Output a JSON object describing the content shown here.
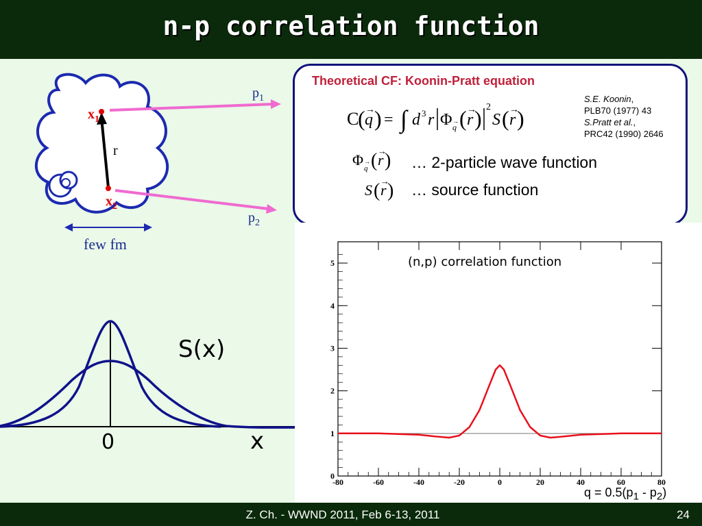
{
  "slide": {
    "title": "n-p correlation function",
    "footer": "Z. Ch. - WWND 2011, Feb 6-13, 2011",
    "page_number": "24"
  },
  "source_diagram": {
    "x1": "x",
    "x1_sub": "1",
    "x2": "x",
    "x2_sub": "2",
    "r": "r",
    "p1": "p",
    "p1_sub": "1",
    "p2": "p",
    "p2_sub": "2",
    "scale": "few fm"
  },
  "formula_box": {
    "title": "Theoretical CF: Koonin-Pratt equation",
    "ref1_author": "S.E. Koonin",
    "ref1_cite": "PLB70 (1977) 43",
    "ref2_author": "S.Pratt et al.",
    "ref2_cite": "PRC42 (1990) 2646",
    "wave_desc": "… 2-particle wave function",
    "source_desc": "… source function"
  },
  "gaussians": {
    "label": "S(x)",
    "zero": "0",
    "axis": "x"
  },
  "chart_data": {
    "type": "line",
    "title": "(n,p) correlation function",
    "xlim": [
      -80,
      80
    ],
    "ylim": [
      0,
      5.5
    ],
    "x_ticks": [
      "-80",
      "-60",
      "-40",
      "-20",
      "0",
      "20",
      "40",
      "60",
      "80"
    ],
    "y_ticks": [
      "0",
      "1",
      "2",
      "3",
      "4",
      "5"
    ],
    "series": [
      {
        "color": "#e8101c",
        "x": [
          -80,
          -60,
          -40,
          -30,
          -25,
          -20,
          -15,
          -10,
          -5,
          -2,
          0,
          2,
          5,
          10,
          15,
          20,
          25,
          30,
          40,
          60,
          80
        ],
        "y": [
          1.0,
          1.0,
          0.97,
          0.92,
          0.9,
          0.95,
          1.15,
          1.55,
          2.15,
          2.5,
          2.6,
          2.5,
          2.15,
          1.55,
          1.15,
          0.95,
          0.9,
          0.92,
          0.97,
          1.0,
          1.0
        ]
      }
    ],
    "reference_line": 1,
    "q_label": "q = 0.5(p",
    "q_sub1": "1",
    "q_mid": " - p",
    "q_sub2": "2",
    "q_end": ")"
  }
}
